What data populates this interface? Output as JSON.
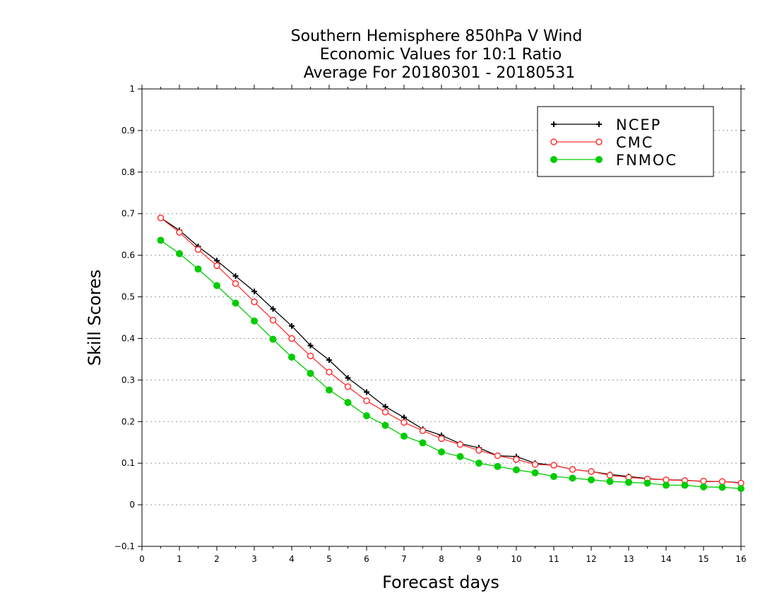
{
  "chart_data": {
    "type": "line",
    "title": [
      "Southern Hemisphere 850hPa V Wind",
      "Economic Values for 10:1 Ratio",
      "Average For 20180301 - 20180531"
    ],
    "xlabel": "Forecast days",
    "ylabel": "Skill Scores",
    "xlim": [
      0,
      16
    ],
    "ylim": [
      -0.1,
      1
    ],
    "xticks": [
      0,
      1,
      2,
      3,
      4,
      5,
      6,
      7,
      8,
      9,
      10,
      11,
      12,
      13,
      14,
      15,
      16
    ],
    "yticks": [
      -0.1,
      0,
      0.1,
      0.2,
      0.3,
      0.4,
      0.5,
      0.6,
      0.7,
      0.8,
      0.9,
      1
    ],
    "ytick_labels": [
      "−0.1",
      "0",
      "0.1",
      "0.2",
      "0.3",
      "0.4",
      "0.5",
      "0.6",
      "0.7",
      "0.8",
      "0.9",
      "1"
    ],
    "grid": "horizontal dotted",
    "legend_position": "top-right",
    "x": [
      0.5,
      1,
      1.5,
      2,
      2.5,
      3,
      3.5,
      4,
      4.5,
      5,
      5.5,
      6,
      6.5,
      7,
      7.5,
      8,
      8.5,
      9,
      9.5,
      10,
      10.5,
      11,
      11.5,
      12,
      12.5,
      13,
      13.5,
      14,
      14.5,
      15,
      15.5,
      16
    ],
    "series": [
      {
        "name": "NCEP",
        "color": "#000000",
        "marker": "plus",
        "values": [
          0.69,
          0.66,
          0.621,
          0.587,
          0.55,
          0.513,
          0.471,
          0.43,
          0.383,
          0.348,
          0.305,
          0.271,
          0.236,
          0.21,
          0.182,
          0.167,
          0.147,
          0.137,
          0.118,
          0.116,
          0.1,
          0.095,
          0.085,
          0.08,
          0.073,
          0.068,
          0.063,
          0.06,
          0.059,
          0.056,
          0.056,
          0.053
        ]
      },
      {
        "name": "CMC",
        "color": "#ff3333",
        "marker": "open-circle",
        "values": [
          0.69,
          0.655,
          0.614,
          0.575,
          0.532,
          0.488,
          0.444,
          0.4,
          0.358,
          0.319,
          0.284,
          0.25,
          0.223,
          0.198,
          0.178,
          0.159,
          0.145,
          0.131,
          0.118,
          0.109,
          0.097,
          0.095,
          0.085,
          0.08,
          0.071,
          0.066,
          0.062,
          0.06,
          0.058,
          0.057,
          0.056,
          0.052
        ]
      },
      {
        "name": "FNMOC",
        "color": "#00cc00",
        "marker": "filled-circle",
        "values": [
          0.636,
          0.604,
          0.567,
          0.527,
          0.485,
          0.442,
          0.398,
          0.355,
          0.316,
          0.276,
          0.246,
          0.214,
          0.191,
          0.165,
          0.149,
          0.127,
          0.116,
          0.1,
          0.092,
          0.084,
          0.077,
          0.068,
          0.064,
          0.06,
          0.056,
          0.054,
          0.052,
          0.047,
          0.047,
          0.043,
          0.042,
          0.039
        ]
      }
    ]
  }
}
